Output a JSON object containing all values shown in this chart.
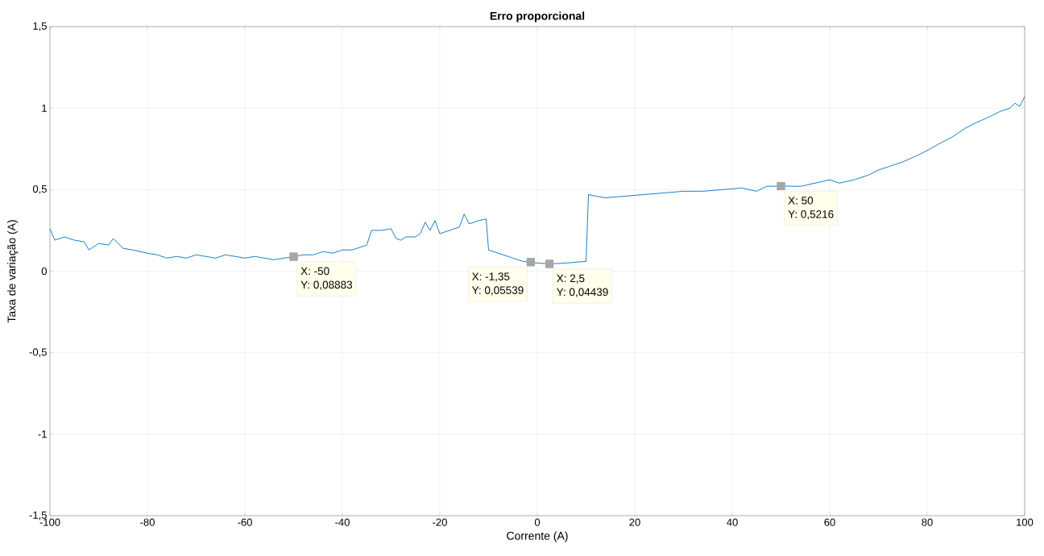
{
  "chart_data": {
    "type": "line",
    "title": "Erro proporcional",
    "xlabel": "Corrente (A)",
    "ylabel": "Taxa de variação (A)",
    "xlim": [
      -100,
      100
    ],
    "ylim": [
      -1.5,
      1.5
    ],
    "xticks": [
      -100,
      -80,
      -60,
      -40,
      -20,
      0,
      20,
      40,
      60,
      80,
      100
    ],
    "yticks": [
      {
        "value": -1.5,
        "label": "-1,5"
      },
      -1,
      {
        "value": -0.5,
        "label": "-0,5"
      },
      0,
      {
        "value": 0.5,
        "label": "0,5"
      },
      1,
      {
        "value": 1.5,
        "label": "1,5"
      }
    ],
    "grid": true,
    "marker": "none",
    "line_style": "solid",
    "series": [
      {
        "color": "#0072bd",
        "x": [
          -100,
          -99,
          -97,
          -95,
          -93,
          -92,
          -90,
          -88,
          -87,
          -85,
          -83,
          -80,
          -78,
          -76,
          -74,
          -72,
          -70,
          -68,
          -66,
          -64,
          -62,
          -60,
          -58,
          -56,
          -54,
          -52,
          -50,
          -48,
          -46,
          -44,
          -42,
          -40,
          -38,
          -36,
          -35,
          -34,
          -32,
          -30,
          -29,
          -28,
          -27,
          -25,
          -24,
          -23,
          -22,
          -21,
          -20,
          -18,
          -16,
          -15,
          -14,
          -12,
          -10.5,
          -10,
          -6,
          -3,
          -1.35,
          0,
          2.5,
          6,
          10,
          10.5,
          12,
          14,
          18,
          22,
          26,
          30,
          34,
          38,
          42,
          45,
          47,
          50,
          54,
          57,
          60,
          62,
          65,
          68,
          70,
          72,
          75,
          78,
          80,
          83,
          85,
          88,
          90,
          93,
          95,
          97,
          98,
          99,
          100
        ],
        "values": [
          0.26,
          0.19,
          0.21,
          0.19,
          0.18,
          0.13,
          0.17,
          0.16,
          0.2,
          0.14,
          0.13,
          0.11,
          0.1,
          0.08,
          0.09,
          0.08,
          0.1,
          0.09,
          0.08,
          0.1,
          0.09,
          0.08,
          0.09,
          0.08,
          0.07,
          0.08,
          0.08883,
          0.1,
          0.1,
          0.12,
          0.11,
          0.13,
          0.13,
          0.15,
          0.16,
          0.25,
          0.25,
          0.26,
          0.2,
          0.19,
          0.21,
          0.21,
          0.23,
          0.3,
          0.25,
          0.31,
          0.23,
          0.25,
          0.27,
          0.35,
          0.29,
          0.31,
          0.32,
          0.13,
          0.09,
          0.06,
          0.05539,
          0.05,
          0.04439,
          0.05,
          0.06,
          0.47,
          0.46,
          0.45,
          0.46,
          0.47,
          0.48,
          0.49,
          0.49,
          0.5,
          0.51,
          0.49,
          0.52,
          0.5216,
          0.52,
          0.54,
          0.56,
          0.54,
          0.56,
          0.59,
          0.62,
          0.64,
          0.67,
          0.71,
          0.74,
          0.79,
          0.82,
          0.88,
          0.91,
          0.95,
          0.98,
          1.0,
          1.03,
          1.01,
          1.07
        ]
      }
    ],
    "annotations": [
      {
        "text": "X: -50",
        "x": -50,
        "y": 0.08883
      },
      {
        "text": "Y: 0,08883",
        "x": -50,
        "y": 0.08883
      },
      {
        "text": "X: -1,35",
        "x": -1.35,
        "y": 0.05539
      },
      {
        "text": "Y: 0,05539",
        "x": -1.35,
        "y": 0.05539
      },
      {
        "text": "X: 2,5",
        "x": 2.5,
        "y": 0.04439
      },
      {
        "text": "Y: 0,04439",
        "x": 2.5,
        "y": 0.04439
      },
      {
        "text": "X: 50",
        "x": 50,
        "y": 0.5216
      },
      {
        "text": "Y: 0,5216",
        "x": 50,
        "y": 0.5216
      }
    ]
  }
}
